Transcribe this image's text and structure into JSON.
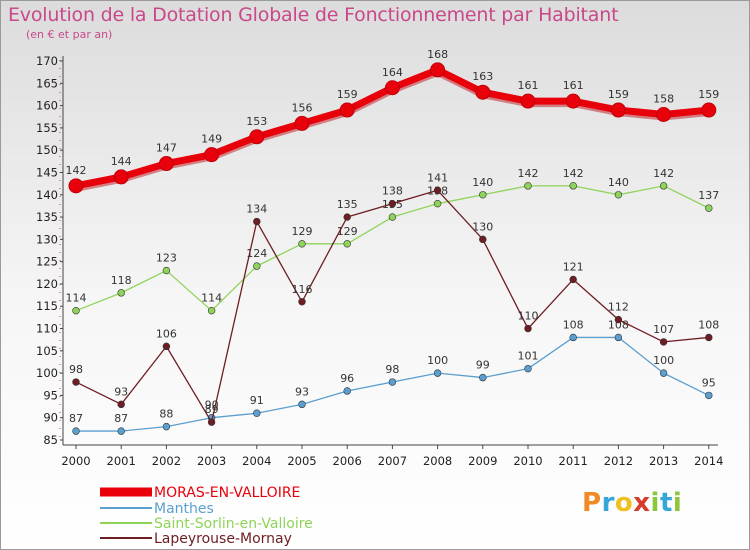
{
  "title": "Evolution de la Dotation Globale de Fonctionnement par Habitant",
  "subtitle": "(en € et par an)",
  "logo": {
    "text": "Proxiti",
    "colors": [
      "#f08a24",
      "#35a6d8",
      "#f0c020",
      "#d93a2a",
      "#8cc63e",
      "#35a6d8",
      "#8cc63e"
    ]
  },
  "chart_data": {
    "type": "line",
    "title": "Evolution de la Dotation Globale de Fonctionnement par Habitant",
    "subtitle": "(en € et par an)",
    "xlabel": "",
    "ylabel": "",
    "x": [
      "2000",
      "2001",
      "2002",
      "2003",
      "2004",
      "2005",
      "2006",
      "2007",
      "2008",
      "2009",
      "2010",
      "2011",
      "2012",
      "2013",
      "2014"
    ],
    "ylim": [
      85,
      170
    ],
    "yticks": [
      85,
      90,
      95,
      100,
      105,
      110,
      115,
      120,
      125,
      130,
      135,
      140,
      145,
      150,
      155,
      160,
      165,
      170
    ],
    "grid": false,
    "legend_position": "bottom-left",
    "series": [
      {
        "name": "MORAS-EN-VALLOIRE",
        "color": "#e8000b",
        "values": [
          142,
          144,
          147,
          149,
          153,
          156,
          159,
          164,
          168,
          163,
          161,
          161,
          159,
          158,
          159
        ]
      },
      {
        "name": "Manthes",
        "color": "#5b9fd0",
        "values": [
          87,
          87,
          88,
          90,
          91,
          93,
          96,
          98,
          100,
          99,
          101,
          108,
          108,
          100,
          95
        ]
      },
      {
        "name": "Saint-Sorlin-en-Valloire",
        "color": "#8fd45a",
        "values": [
          114,
          118,
          123,
          114,
          124,
          129,
          129,
          135,
          138,
          140,
          142,
          142,
          140,
          142,
          137
        ]
      },
      {
        "name": "Lapeyrouse-Mornay",
        "color": "#6e1e23",
        "values": [
          98,
          93,
          106,
          89,
          134,
          116,
          135,
          138,
          141,
          130,
          110,
          121,
          112,
          107,
          108
        ]
      }
    ]
  }
}
